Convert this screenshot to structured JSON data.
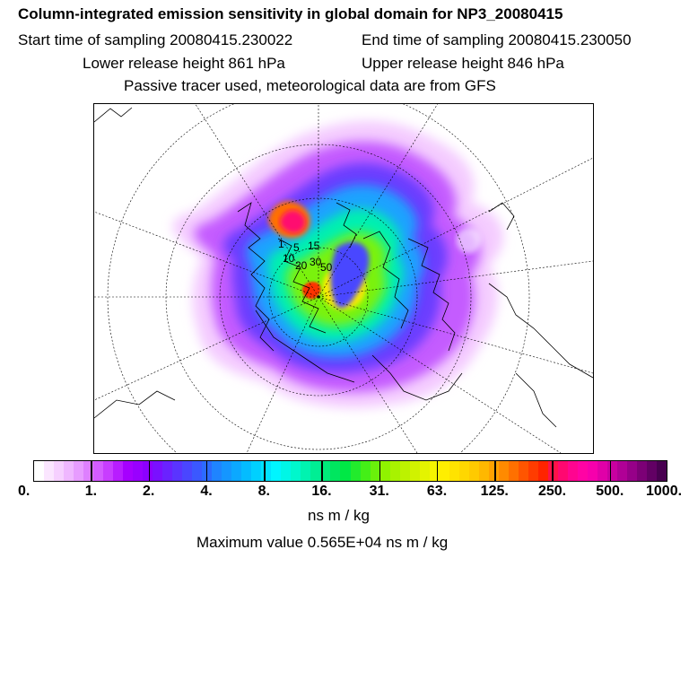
{
  "titles": {
    "main": "Column-integrated emission sensitivity in global domain for NP3_20080415",
    "start": "Start time of sampling 20080415.230022",
    "end": "End time of sampling 20080415.230050",
    "lower": "Lower release height  861 hPa",
    "upper": "Upper release height  846 hPa",
    "note": "Passive tracer used, meteorological data are from GFS"
  },
  "map": {
    "projection": "north-polar-stereographic",
    "source_labels": [
      "1",
      "5",
      "10",
      "15",
      "20",
      "30",
      "50"
    ]
  },
  "colorbar": {
    "ticks": [
      "0.",
      "1.",
      "2.",
      "4.",
      "8.",
      "16.",
      "31.",
      "63.",
      "125.",
      "250.",
      "500.",
      "1000."
    ],
    "colors": [
      "#ffffff",
      "#fbe6ff",
      "#f6d0ff",
      "#efb7ff",
      "#e79cff",
      "#de80ff",
      "#d45cff",
      "#c83dff",
      "#b81dff",
      "#a600ff",
      "#9900ff",
      "#8c00ff",
      "#7a10ff",
      "#6a22ff",
      "#5a34ff",
      "#4a46ff",
      "#3b58ff",
      "#2c6aff",
      "#1f84ff",
      "#1596ff",
      "#0ca8ff",
      "#04bcff",
      "#00d0ff",
      "#00e2ff",
      "#00f5ff",
      "#00f6e6",
      "#00f7cc",
      "#00f3b0",
      "#00ee94",
      "#00ea7a",
      "#00e65f",
      "#00e845",
      "#22eb2c",
      "#44ef17",
      "#6af10b",
      "#90f300",
      "#a8f200",
      "#bcf200",
      "#d0f200",
      "#e4f400",
      "#f6f500",
      "#ffee00",
      "#ffe300",
      "#ffd700",
      "#ffca00",
      "#ffb800",
      "#ffa200",
      "#ff8a00",
      "#ff7000",
      "#ff5500",
      "#ff3c00",
      "#ff2400",
      "#ff1248",
      "#ff0870",
      "#ff0590",
      "#ff03a4",
      "#f600ac",
      "#e000a8",
      "#c800a0",
      "#b00096",
      "#960088",
      "#7c0076",
      "#620064",
      "#480050"
    ]
  },
  "unit": "ns m / kg",
  "max_value": "Maximum value  0.565E+04 ns m / kg"
}
